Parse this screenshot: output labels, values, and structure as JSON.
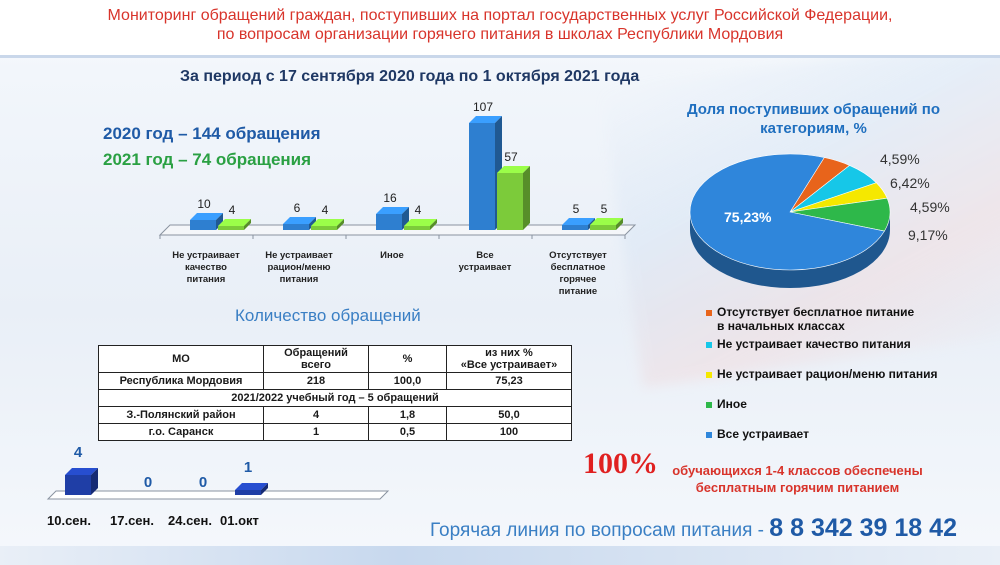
{
  "header": {
    "line1": "Мониторинг обращений граждан, поступивших на портал государственных услуг Российской Федерации,",
    "line2": "по вопросам организации горячего питания в школах Республики Мордовия"
  },
  "period_title": "За период с 17 сентября 2020 года по 1 октября 2021 года",
  "totals": {
    "y2020": "2020 год – 144 обращения",
    "y2021": "2021 год – 74 обращения"
  },
  "count_title": "Количество обращений",
  "table": {
    "headers": [
      "МО",
      "Обращений",
      "%",
      "из них %"
    ],
    "headers_sub": [
      "",
      "всего",
      "",
      "«Все устраивает»"
    ],
    "section": "2021/2022 учебный год – 5 обращений",
    "rows": [
      [
        "Республика Мордовия",
        "218",
        "100,0",
        "75,23"
      ],
      [
        "З.-Полянский район",
        "4",
        "1,8",
        "50,0"
      ],
      [
        "г.о. Саранск",
        "1",
        "0,5",
        "100"
      ]
    ]
  },
  "pie": {
    "title": "Доля поступивших обращений по категориям, %"
  },
  "free_meals": {
    "percent": "100%",
    "line1": "обучающихся 1-4  классов обеспечены",
    "line2": "бесплатным горячим питанием"
  },
  "hotline": {
    "label": "Горячая линия по вопросам питания -",
    "number": "8 8 342 39 18 42"
  },
  "colors": {
    "blue": "#2e7fd0",
    "green": "#7ccb3a",
    "orange": "#e8641b",
    "cyan": "#16c7e8",
    "yellow": "#f5e800",
    "pie_green": "#2eb84a",
    "pie_blue": "#2f86db"
  },
  "chart_data": [
    {
      "type": "bar",
      "categories": [
        [
          "Не устраивает",
          "качество",
          "питания"
        ],
        [
          "Не устраивает",
          "рацион/меню",
          "питания"
        ],
        [
          "Иное"
        ],
        [
          "Все",
          "устраивает"
        ],
        [
          "Отсутствует",
          "бесплатное",
          "горячее",
          "питание"
        ]
      ],
      "series": [
        {
          "values": [
            10,
            6,
            16,
            107,
            5
          ]
        },
        {
          "values": [
            4,
            4,
            4,
            57,
            5
          ]
        }
      ]
    },
    {
      "type": "pie",
      "title": "Доля поступивших обращений по категориям, %",
      "labels": [
        "Отсутствует бесплатное питание в начальных классах",
        "Не устраивает качество питания",
        "Не устраивает рацион/меню питания",
        "Иное",
        "Все устраивает"
      ],
      "values": [
        4.59,
        6.42,
        4.59,
        9.17,
        75.23
      ],
      "value_labels": [
        "4,59%",
        "6,42%",
        "4,59%",
        "9,17%",
        "75,23%"
      ],
      "legend_position": "bottom"
    },
    {
      "type": "bar",
      "categories": [
        "10.сен.",
        "17.сен.",
        "24.сен.",
        "01.окт"
      ],
      "values": [
        4,
        0,
        0,
        1
      ]
    }
  ]
}
